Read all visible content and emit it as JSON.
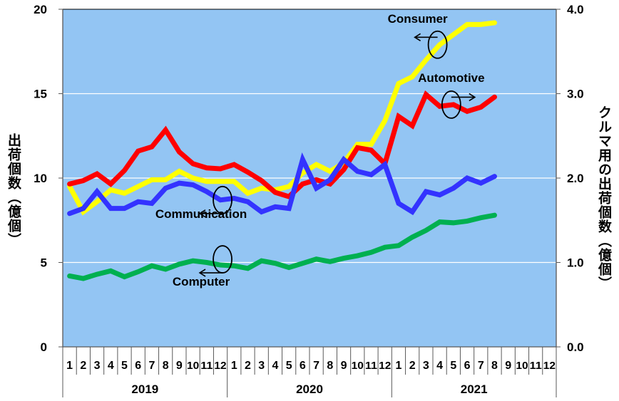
{
  "chart_data": {
    "type": "line",
    "title": "",
    "xlabel": "",
    "ylabel": "出荷個数（億個）",
    "ylabel_right": "クルマ用の出荷個数（億個）",
    "ylim": [
      0,
      20
    ],
    "ylim_right": [
      0.0,
      4.0
    ],
    "yticks": [
      "0",
      "5",
      "10",
      "15",
      "20"
    ],
    "yticks_right": [
      "0.0",
      "1.0",
      "2.0",
      "3.0",
      "4.0"
    ],
    "grid": true,
    "months": [
      "1",
      "2",
      "3",
      "4",
      "5",
      "6",
      "7",
      "8",
      "9",
      "10",
      "11",
      "12"
    ],
    "years": [
      "2019",
      "2020",
      "2021"
    ],
    "x": [
      "2019-01",
      "2019-02",
      "2019-03",
      "2019-04",
      "2019-05",
      "2019-06",
      "2019-07",
      "2019-08",
      "2019-09",
      "2019-10",
      "2019-11",
      "2019-12",
      "2020-01",
      "2020-02",
      "2020-03",
      "2020-04",
      "2020-05",
      "2020-06",
      "2020-07",
      "2020-08",
      "2020-09",
      "2020-10",
      "2020-11",
      "2020-12",
      "2021-01",
      "2021-02",
      "2021-03",
      "2021-04",
      "2021-05",
      "2021-06",
      "2021-07",
      "2021-08"
    ],
    "series": [
      {
        "name": "Consumer",
        "axis": "left",
        "color": "#ffff00",
        "values": [
          9.5,
          8.0,
          8.6,
          9.3,
          9.1,
          9.5,
          9.9,
          9.9,
          10.4,
          10.0,
          9.8,
          9.8,
          9.8,
          9.1,
          9.4,
          9.3,
          9.5,
          10.3,
          10.8,
          10.4,
          10.9,
          12.0,
          12.0,
          13.4,
          15.6,
          16.0,
          17.0,
          17.9,
          18.5,
          19.1,
          19.1,
          19.2
        ]
      },
      {
        "name": "Automotive",
        "axis": "right",
        "color": "#ff0000",
        "values": [
          1.93,
          1.97,
          2.05,
          1.93,
          2.09,
          2.32,
          2.37,
          2.57,
          2.31,
          2.17,
          2.12,
          2.11,
          2.16,
          2.07,
          1.97,
          1.83,
          1.78,
          1.93,
          1.98,
          1.93,
          2.1,
          2.36,
          2.33,
          2.17,
          2.73,
          2.62,
          2.99,
          2.85,
          2.87,
          2.79,
          2.84,
          2.96
        ]
      },
      {
        "name": "Communication",
        "axis": "left",
        "color": "#3333ff",
        "values": [
          7.9,
          8.2,
          9.2,
          8.2,
          8.2,
          8.6,
          8.5,
          9.4,
          9.7,
          9.6,
          9.2,
          8.7,
          8.8,
          8.6,
          8.0,
          8.3,
          8.2,
          11.1,
          9.4,
          9.9,
          11.1,
          10.4,
          10.2,
          10.8,
          8.5,
          8.0,
          9.2,
          9.0,
          9.4,
          10.0,
          9.7,
          10.1
        ]
      },
      {
        "name": "Computer",
        "axis": "left",
        "color": "#00b050",
        "values": [
          4.2,
          4.05,
          4.3,
          4.5,
          4.15,
          4.45,
          4.8,
          4.6,
          4.9,
          5.1,
          5.0,
          4.85,
          4.8,
          4.65,
          5.1,
          4.95,
          4.7,
          4.95,
          5.2,
          5.05,
          5.25,
          5.4,
          5.6,
          5.9,
          6.0,
          6.5,
          6.9,
          7.4,
          7.35,
          7.45,
          7.65,
          7.8
        ]
      }
    ],
    "annotations": [
      {
        "text": "Consumer",
        "series": "Consumer",
        "arrow": "left",
        "at_index": 27
      },
      {
        "text": "Automotive",
        "series": "Automotive",
        "arrow": "right",
        "at_index": 28
      },
      {
        "text": "Communication",
        "series": "Communication",
        "arrow": "left",
        "at_index": 11
      },
      {
        "text": "Computer",
        "series": "Computer",
        "arrow": "left",
        "at_index": 11
      }
    ],
    "colors": {
      "plot_background": "#93c5f3",
      "gridline": "#ffffff",
      "axis": "#595959"
    }
  }
}
